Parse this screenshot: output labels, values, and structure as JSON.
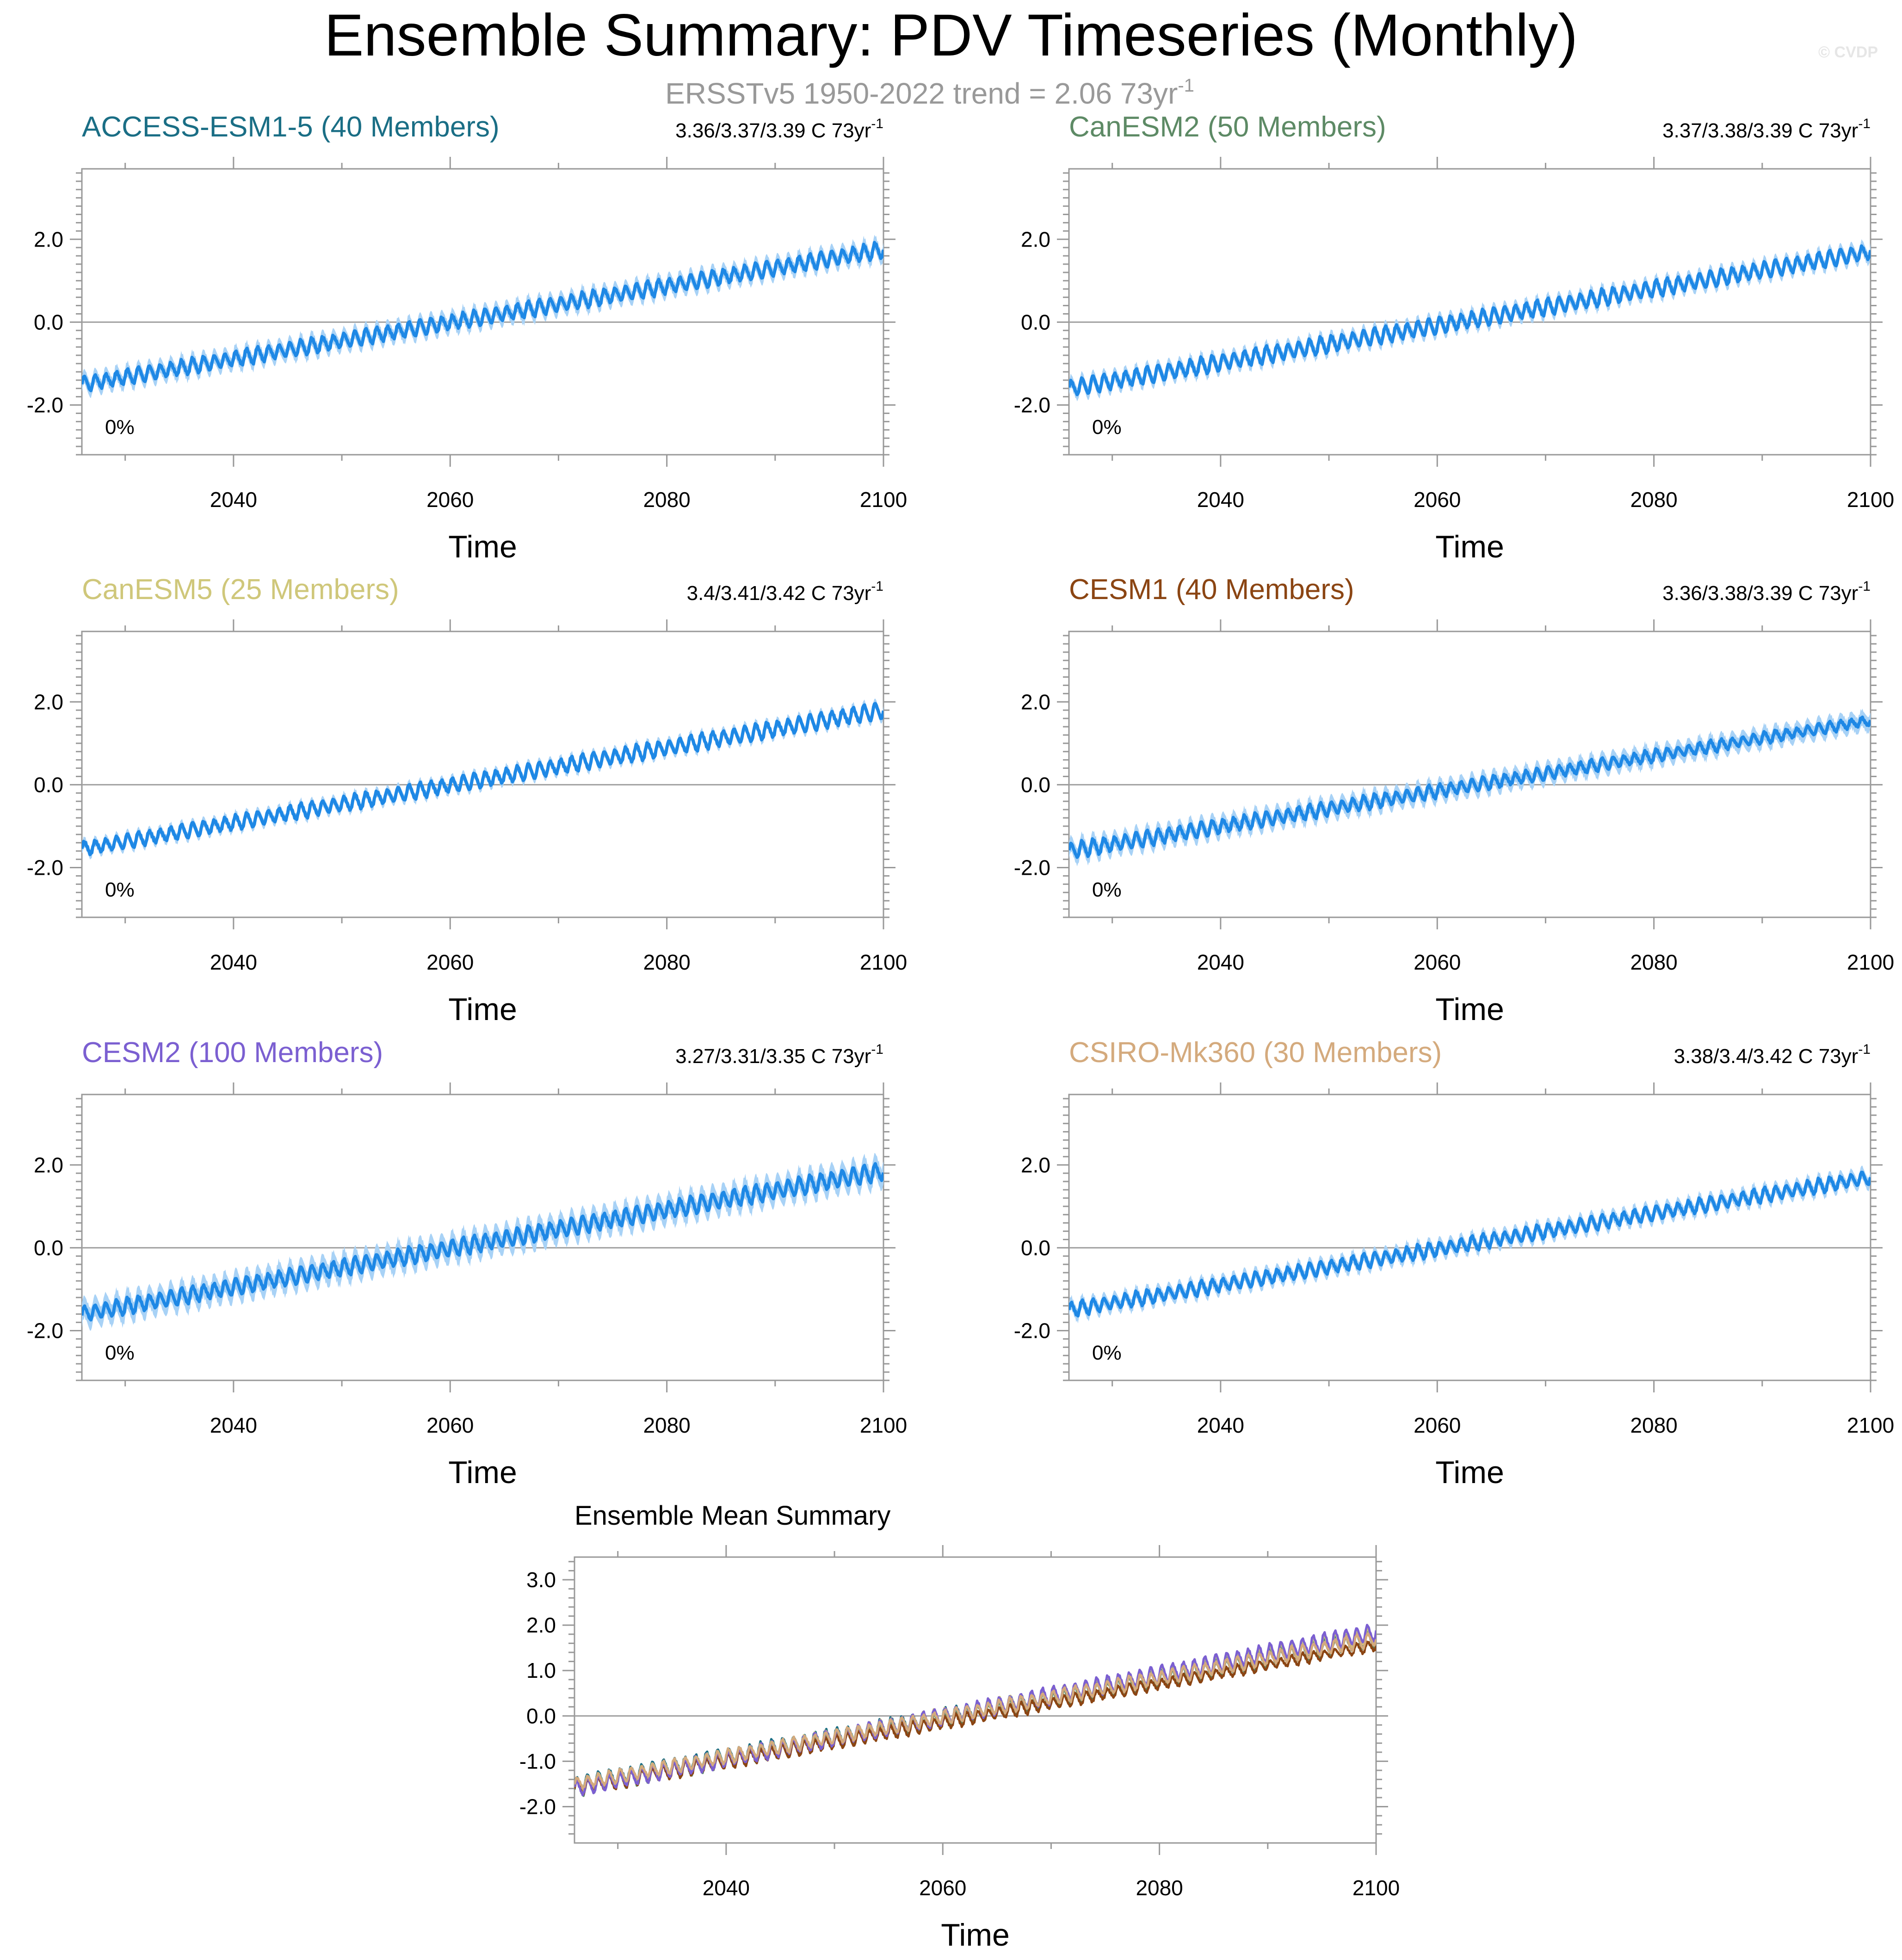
{
  "figure": {
    "title": "Ensemble Summary: PDV Timeseries (Monthly)",
    "subtitle_main": "ERSSTv5 1950-2022 trend = 2.06 73yr",
    "subtitle_sup": "-1",
    "watermark": "© CVDP"
  },
  "colors": {
    "spread_band": "#a8d2f6",
    "ensemble_mean": "#1e88e5",
    "axis": "#999999",
    "zero_line": "#a0a0a0"
  },
  "chart_data": [
    {
      "type": "line",
      "title": "ACCESS-ESM1-5 (40 Members)",
      "title_color": "#1a6e85",
      "trend_text": "3.36/3.37/3.39 C 73yr",
      "trend_sup": "-1",
      "percent_label": "0%",
      "xlabel": "Time",
      "ylabel": "",
      "xlim": [
        2026,
        2100
      ],
      "ylim": [
        -3.2,
        3.7
      ],
      "xticks": [
        2040,
        2060,
        2080,
        2100
      ],
      "xtick_labels": [
        "2040",
        "2060",
        "2080",
        "2100"
      ],
      "yticks": [
        -2.0,
        0.0,
        2.0
      ],
      "ytick_labels": [
        "-2.0",
        "0.0",
        "2.0"
      ],
      "start_value": -1.5,
      "end_value": 1.75,
      "mean_amplitude_start": 0.38,
      "mean_amplitude_end": 0.4,
      "spread_halfwidth": 0.15,
      "cycles_per_year": 1
    },
    {
      "type": "line",
      "title": "CanESM2 (50 Members)",
      "title_color": "#5d8a65",
      "trend_text": "3.37/3.38/3.39 C 73yr",
      "trend_sup": "-1",
      "percent_label": "0%",
      "xlabel": "Time",
      "ylabel": "",
      "xlim": [
        2026,
        2100
      ],
      "ylim": [
        -3.2,
        3.7
      ],
      "xticks": [
        2040,
        2060,
        2080,
        2100
      ],
      "xtick_labels": [
        "2040",
        "2060",
        "2080",
        "2100"
      ],
      "yticks": [
        -2.0,
        0.0,
        2.0
      ],
      "ytick_labels": [
        "-2.0",
        "0.0",
        "2.0"
      ],
      "start_value": -1.6,
      "end_value": 1.7,
      "mean_amplitude_start": 0.42,
      "mean_amplitude_end": 0.4,
      "spread_halfwidth": 0.12,
      "cycles_per_year": 1
    },
    {
      "type": "line",
      "title": "CanESM5 (25 Members)",
      "title_color": "#cfc77a",
      "trend_text": "3.4/3.41/3.42 C 73yr",
      "trend_sup": "-1",
      "percent_label": "0%",
      "xlabel": "Time",
      "ylabel": "",
      "xlim": [
        2026,
        2100
      ],
      "ylim": [
        -3.2,
        3.7
      ],
      "xticks": [
        2040,
        2060,
        2080,
        2100
      ],
      "xtick_labels": [
        "2040",
        "2060",
        "2080",
        "2100"
      ],
      "yticks": [
        -2.0,
        0.0,
        2.0
      ],
      "ytick_labels": [
        "-2.0",
        "0.0",
        "2.0"
      ],
      "start_value": -1.55,
      "end_value": 1.8,
      "mean_amplitude_start": 0.35,
      "mean_amplitude_end": 0.42,
      "spread_halfwidth": 0.08,
      "cycles_per_year": 1
    },
    {
      "type": "line",
      "title": "CESM1 (40 Members)",
      "title_color": "#8b4513",
      "trend_text": "3.36/3.38/3.39 C 73yr",
      "trend_sup": "-1",
      "percent_label": "0%",
      "xlabel": "Time",
      "ylabel": "",
      "xlim": [
        2026,
        2100
      ],
      "ylim": [
        -3.2,
        3.7
      ],
      "xticks": [
        2040,
        2060,
        2080,
        2100
      ],
      "xtick_labels": [
        "2040",
        "2060",
        "2080",
        "2100"
      ],
      "yticks": [
        -2.0,
        0.0,
        2.0
      ],
      "ytick_labels": [
        "-2.0",
        "0.0",
        "2.0"
      ],
      "start_value": -1.6,
      "end_value": 1.55,
      "mean_amplitude_start": 0.4,
      "mean_amplitude_end": 0.25,
      "spread_halfwidth": 0.17,
      "cycles_per_year": 1
    },
    {
      "type": "line",
      "title": "CESM2 (100 Members)",
      "title_color": "#7b5fd1",
      "trend_text": "3.27/3.31/3.35 C 73yr",
      "trend_sup": "-1",
      "percent_label": "0%",
      "xlabel": "Time",
      "ylabel": "",
      "xlim": [
        2026,
        2100
      ],
      "ylim": [
        -3.2,
        3.7
      ],
      "xticks": [
        2040,
        2060,
        2080,
        2100
      ],
      "xtick_labels": [
        "2040",
        "2060",
        "2080",
        "2100"
      ],
      "yticks": [
        -2.0,
        0.0,
        2.0
      ],
      "ytick_labels": [
        "-2.0",
        "0.0",
        "2.0"
      ],
      "start_value": -1.6,
      "end_value": 1.85,
      "mean_amplitude_start": 0.4,
      "mean_amplitude_end": 0.45,
      "spread_halfwidth": 0.25,
      "cycles_per_year": 1
    },
    {
      "type": "line",
      "title": "CSIRO-Mk360 (30 Members)",
      "title_color": "#d4aa7d",
      "trend_text": "3.38/3.4/3.42 C 73yr",
      "trend_sup": "-1",
      "percent_label": "0%",
      "xlabel": "Time",
      "ylabel": "",
      "xlim": [
        2026,
        2100
      ],
      "ylim": [
        -3.2,
        3.7
      ],
      "xticks": [
        2040,
        2060,
        2080,
        2100
      ],
      "xtick_labels": [
        "2040",
        "2060",
        "2080",
        "2100"
      ],
      "yticks": [
        -2.0,
        0.0,
        2.0
      ],
      "ytick_labels": [
        "-2.0",
        "0.0",
        "2.0"
      ],
      "start_value": -1.5,
      "end_value": 1.7,
      "mean_amplitude_start": 0.35,
      "mean_amplitude_end": 0.35,
      "spread_halfwidth": 0.12,
      "cycles_per_year": 1
    },
    {
      "type": "line",
      "title": "Ensemble Mean Summary",
      "title_color": "#000000",
      "xlabel": "Time",
      "ylabel": "",
      "xlim": [
        2026,
        2100
      ],
      "ylim": [
        -2.8,
        3.5
      ],
      "xticks": [
        2040,
        2060,
        2080,
        2100
      ],
      "xtick_labels": [
        "2040",
        "2060",
        "2080",
        "2100"
      ],
      "yticks": [
        -2.0,
        -1.0,
        0.0,
        1.0,
        2.0,
        3.0
      ],
      "ytick_labels": [
        "-2.0",
        "-1.0",
        "0.0",
        "1.0",
        "2.0",
        "3.0"
      ],
      "series": [
        {
          "name": "ACCESS-ESM1-5",
          "color": "#1a6e85",
          "start_value": -1.5,
          "end_value": 1.75,
          "amplitude_start": 0.35,
          "amplitude_end": 0.38
        },
        {
          "name": "CanESM2",
          "color": "#5d8a65",
          "start_value": -1.6,
          "end_value": 1.7,
          "amplitude_start": 0.38,
          "amplitude_end": 0.36
        },
        {
          "name": "CanESM5",
          "color": "#cfc77a",
          "start_value": -1.55,
          "end_value": 1.8,
          "amplitude_start": 0.32,
          "amplitude_end": 0.4
        },
        {
          "name": "CESM1",
          "color": "#8b4513",
          "start_value": -1.6,
          "end_value": 1.55,
          "amplitude_start": 0.36,
          "amplitude_end": 0.22
        },
        {
          "name": "CESM2",
          "color": "#7b5fd1",
          "start_value": -1.6,
          "end_value": 1.85,
          "amplitude_start": 0.36,
          "amplitude_end": 0.42
        },
        {
          "name": "CSIRO-Mk360",
          "color": "#d4aa7d",
          "start_value": -1.5,
          "end_value": 1.7,
          "amplitude_start": 0.3,
          "amplitude_end": 0.33
        }
      ]
    }
  ]
}
